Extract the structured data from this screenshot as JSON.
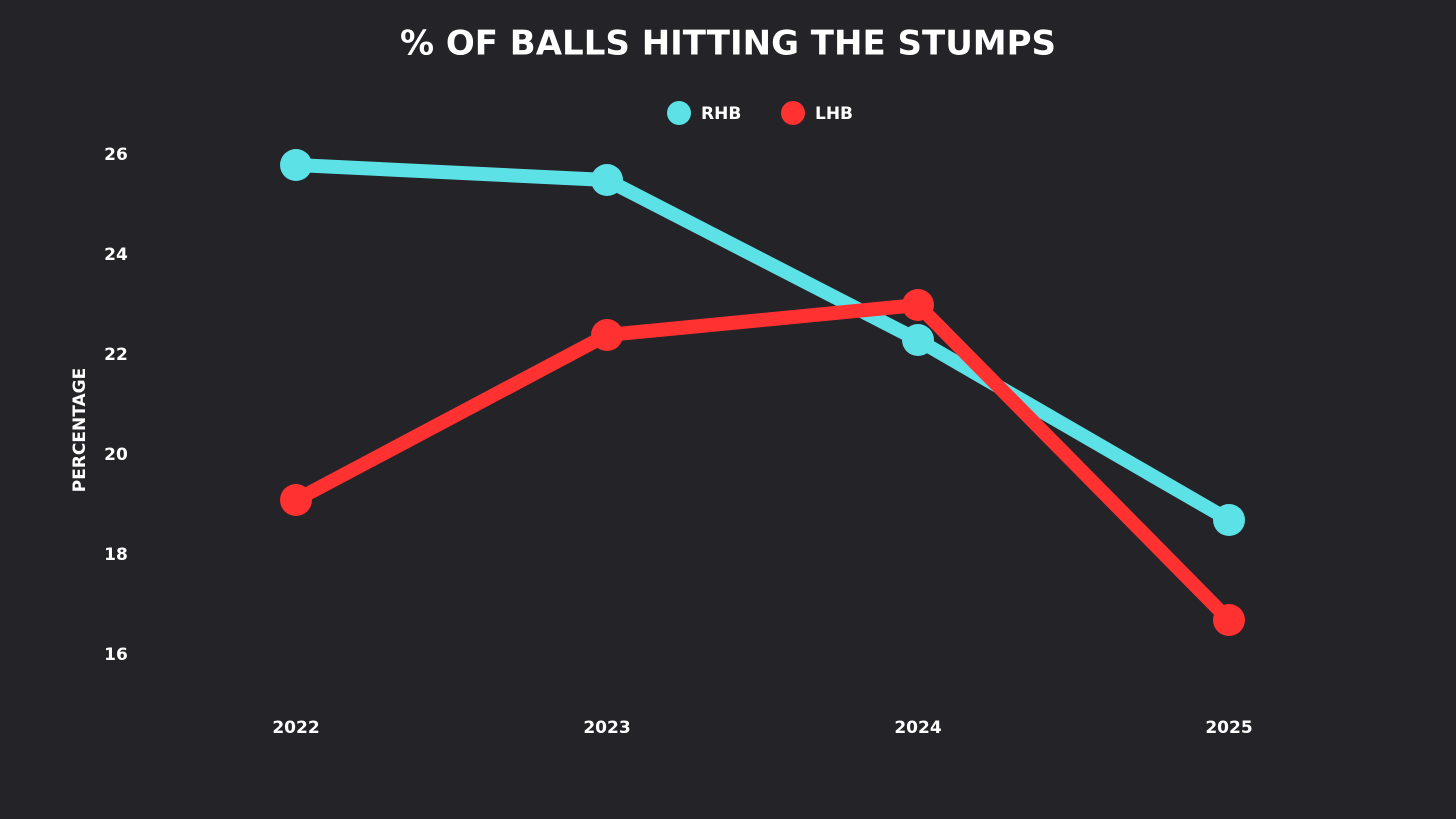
{
  "chart_data": {
    "type": "line",
    "title": "% OF BALLS HITTING THE STUMPS",
    "y_label": "PERCENTAGE",
    "categories": [
      "2022",
      "2023",
      "2024",
      "2025"
    ],
    "series": [
      {
        "name": "RHB",
        "color": "#5ce1e6",
        "values": [
          25.8,
          25.5,
          22.3,
          18.7
        ]
      },
      {
        "name": "LHB",
        "color": "#ff3131",
        "values": [
          19.1,
          22.4,
          23.0,
          16.7
        ]
      }
    ],
    "ylim": [
      15,
      27
    ],
    "yticks": [
      16,
      18,
      20,
      22,
      24,
      26
    ],
    "grid": false,
    "legend": "top"
  }
}
